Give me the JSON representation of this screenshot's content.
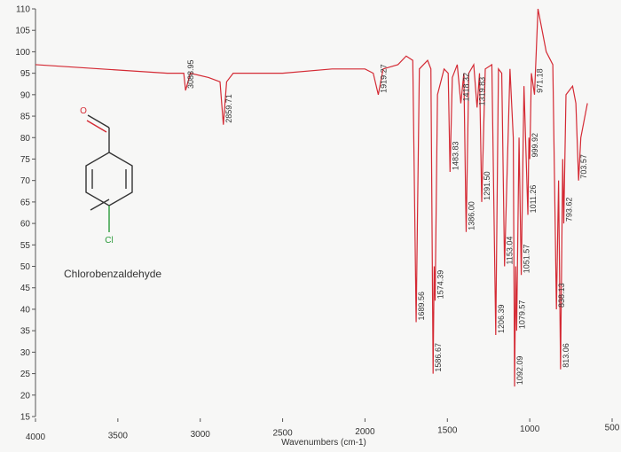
{
  "chart_data": {
    "type": "line",
    "xlabel": "Wavenumbers (cm-1)",
    "annotations": [
      "Chlorobenzaldehyde"
    ],
    "atom_labels": [
      "O",
      "Cl"
    ],
    "color": "#d42a34",
    "xlim": [
      4000,
      500
    ],
    "xticks": [
      4000,
      3500,
      3000,
      2500,
      2000,
      1500,
      1000,
      500
    ],
    "ylim": [
      15,
      110
    ],
    "yticks": [
      15,
      20,
      25,
      30,
      35,
      40,
      45,
      50,
      55,
      60,
      65,
      70,
      75,
      80,
      85,
      90,
      95,
      100,
      105,
      110
    ],
    "x": [
      4000,
      3600,
      3200,
      3100,
      3088.95,
      3060,
      2950,
      2880,
      2859.71,
      2840,
      2800,
      2500,
      2200,
      2000,
      1950,
      1919.27,
      1890,
      1800,
      1750,
      1710,
      1689.56,
      1670,
      1620,
      1600,
      1586.67,
      1580,
      1574.39,
      1560,
      1520,
      1495,
      1483.83,
      1470,
      1440,
      1418.32,
      1400,
      1386.0,
      1370,
      1340,
      1319.83,
      1305,
      1291.5,
      1270,
      1230,
      1206.39,
      1190,
      1170,
      1153.04,
      1120,
      1100,
      1092.09,
      1085,
      1079.57,
      1065,
      1051.57,
      1035,
      1011.26,
      1005,
      999.92,
      990,
      971.18,
      950,
      900,
      860,
      838.13,
      825,
      813.06,
      800,
      793.62,
      780,
      740,
      720,
      703.57,
      690,
      650
    ],
    "values": [
      97,
      96,
      95,
      95,
      91,
      95,
      94,
      93,
      83,
      93,
      95,
      95,
      96,
      96,
      95,
      90,
      96,
      97,
      99,
      98,
      37,
      96,
      98,
      96,
      25,
      50,
      42,
      90,
      96,
      95,
      72,
      94,
      97,
      88,
      95,
      58,
      95,
      97,
      87,
      95,
      65,
      96,
      97,
      34,
      96,
      95,
      50,
      96,
      80,
      22,
      50,
      35,
      80,
      48,
      92,
      62,
      80,
      75,
      95,
      90,
      110,
      100,
      97,
      40,
      70,
      26,
      75,
      60,
      90,
      92,
      88,
      70,
      80,
      88
    ],
    "peak_x": [
      3088.95,
      2859.71,
      1919.27,
      1689.56,
      1586.67,
      1574.39,
      1483.83,
      1418.32,
      1386.0,
      1319.83,
      1291.5,
      1206.39,
      1153.04,
      1092.09,
      1079.57,
      1051.57,
      1011.26,
      999.92,
      971.18,
      838.13,
      813.06,
      793.62,
      703.57
    ],
    "peak_labels": [
      "3088.95",
      "2859.71",
      "1919.27",
      "1689.56",
      "1586.67",
      "1574.39",
      "1483.83",
      "1418.32",
      "1386.00",
      "1319.83",
      "1291.50",
      "1206.39",
      "1153.04",
      "1092.09",
      "1079.57",
      "1051.57",
      "1011.26",
      "999.92",
      "971.18",
      "838.13",
      "813.06",
      "793.62",
      "703.57"
    ]
  }
}
